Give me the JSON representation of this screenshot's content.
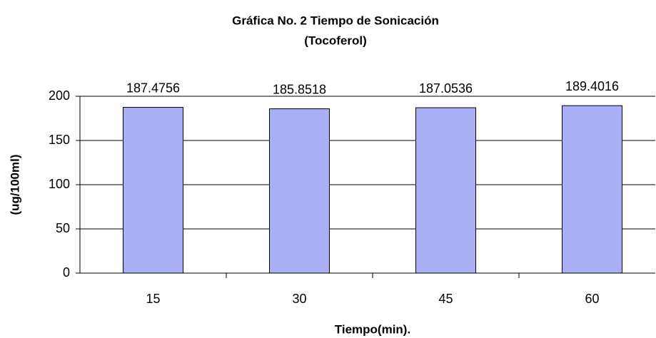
{
  "chart_data": {
    "type": "bar",
    "title": "Gráfica No. 2   Tiempo de Sonicación",
    "subtitle": "(Tocoferol)",
    "x_label": "Tiempo(min).",
    "y_label": "(ug/100ml)",
    "categories": [
      "15",
      "30",
      "45",
      "60"
    ],
    "values": [
      187.4756,
      185.8518,
      187.0536,
      189.4016
    ],
    "color": "#a9aef5",
    "ylim": [
      0,
      200
    ],
    "yticks": [
      0,
      50,
      100,
      150,
      200
    ],
    "grid": true
  }
}
